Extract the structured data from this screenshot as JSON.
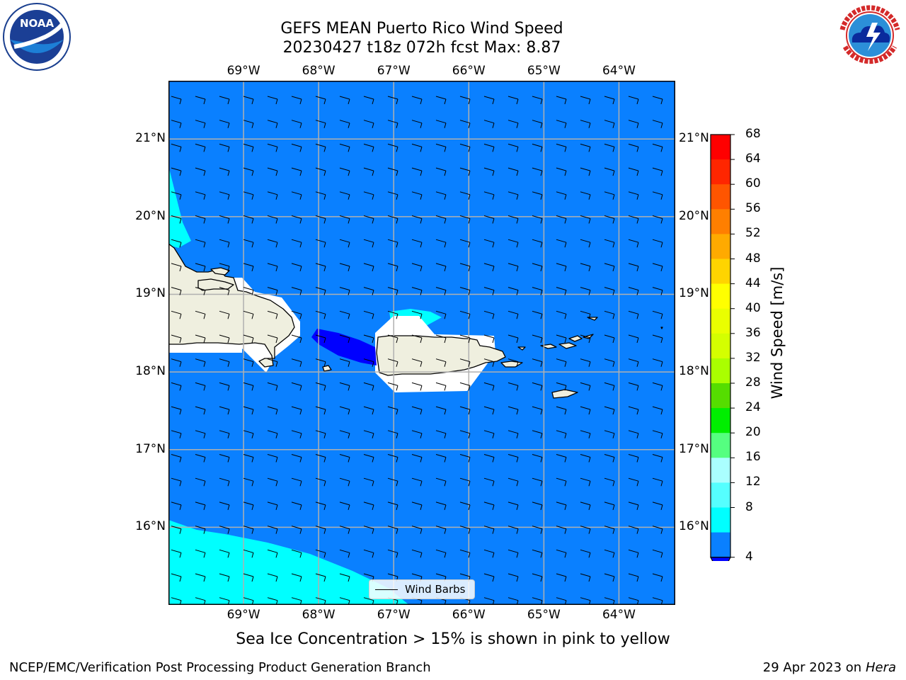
{
  "title": {
    "line1": "GEFS MEAN Puerto Rico Wind Speed",
    "line2": "20230427 t18z 072h fcst   Max: 8.87"
  },
  "logos": {
    "left": {
      "name": "NOAA",
      "text": "NOAA",
      "ring_text": "NATIONAL OCEANIC AND ATMOSPHERIC ADMINISTRATION · U.S. DEPARTMENT OF COMMERCE"
    },
    "right": {
      "name": "National Weather Service",
      "ring_text": "NATIONAL WEATHER SERVICE"
    }
  },
  "map": {
    "projection": "lat-lon",
    "lon_range": [
      -70.0,
      -63.25
    ],
    "lat_range": [
      15.0,
      21.75
    ],
    "lon_ticks": [
      "69°W",
      "68°W",
      "67°W",
      "66°W",
      "65°W",
      "64°W"
    ],
    "lat_ticks": [
      "21°N",
      "20°N",
      "19°N",
      "18°N",
      "17°N",
      "16°N"
    ],
    "gridlines": true,
    "background_fill": "#0a80ff",
    "legend": {
      "label": "Wind Barbs",
      "placement": "lower-center"
    },
    "land_color": "#efefdf",
    "masked_color": "#ffffff",
    "cyan_color": "#00ffff",
    "dark_blue_color": "#0000ff"
  },
  "colorbar": {
    "label": "Wind Speed [m/s]",
    "ticks": [
      "68",
      "64",
      "60",
      "56",
      "52",
      "48",
      "44",
      "40",
      "36",
      "32",
      "28",
      "24",
      "20",
      "16",
      "12",
      "8",
      "4"
    ],
    "colors": [
      "#ff0000",
      "#ff2600",
      "#ff5500",
      "#ff7f00",
      "#ffaa00",
      "#ffd400",
      "#ffff00",
      "#eaff00",
      "#d4ff00",
      "#aaff00",
      "#55dd00",
      "#00ee00",
      "#55ff80",
      "#aaffff",
      "#55ffff",
      "#00ffff",
      "#0a80ff"
    ],
    "under_color": "#0000ff"
  },
  "caption": "Sea Ice Concentration > 15% is shown in pink to yellow",
  "footer": {
    "left": "NCEP/EMC/Verification Post Processing Product Generation Branch",
    "right_prefix": "29 Apr 2023 on ",
    "right_italic": "Hera"
  }
}
